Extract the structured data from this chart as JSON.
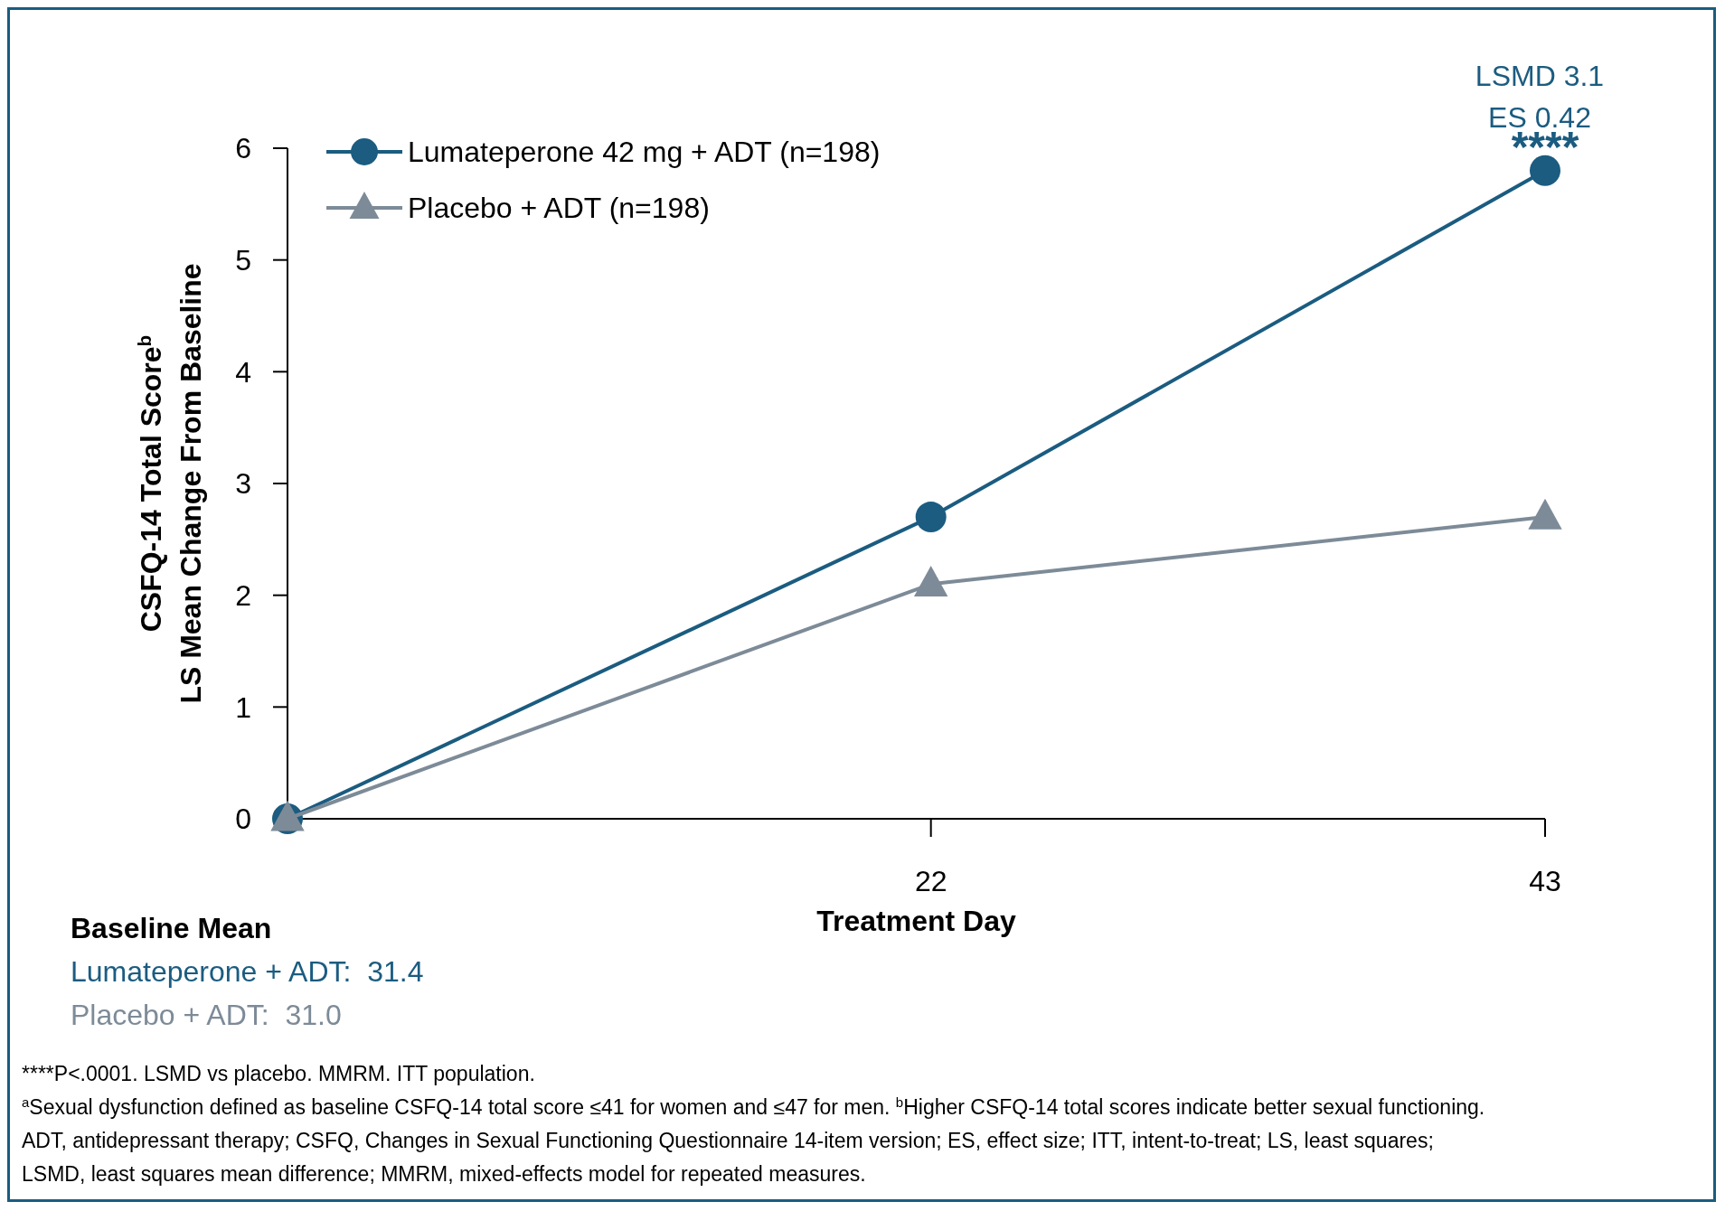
{
  "chart_data": {
    "type": "line",
    "xlabel": "Treatment Day",
    "ylabel": "CSFQ-14 Total Score$^{b}$\nLS Mean Change From Baseline",
    "x": [
      0,
      22,
      43
    ],
    "xlim": [
      0,
      43
    ],
    "xticks": [
      22,
      43
    ],
    "ylim": [
      0,
      6
    ],
    "yticks": [
      0,
      1,
      2,
      3,
      4,
      5,
      6
    ],
    "series": [
      {
        "name": "Lumateperone 42 mg + ADT (n=198)",
        "color": "#1b5c80",
        "marker": "circle",
        "values": [
          0,
          2.7,
          5.8
        ]
      },
      {
        "name": "Placebo + ADT (n=198)",
        "color": "#7d8b98",
        "marker": "triangle",
        "values": [
          0,
          2.1,
          2.7
        ]
      }
    ],
    "legend": "top left",
    "grid": false,
    "annotations": [
      {
        "text": "****",
        "x": 43,
        "y": 5.8
      },
      "LSMD 3.1",
      "ES 0.42",
      "Baseline Mean",
      "Lumateperone + ADT:  31.4",
      "Placebo + ADT:  31.0",
      "****P<.0001. LSMD vs placebo. MMRM. ITT population.",
      "$^{a}$Sexual dysfunction defined as baseline CSFQ-14 total score ≤41 for women and ≤47 for men. $^{b}$Higher CSFQ-14 total scores indicate better sexual functioning.",
      "ADT, antidepressant therapy; CSFQ, Changes in Sexual Functioning Questionnaire 14-item version; ES, effect size; ITT, intent-to-treat; LS, least squares;",
      "LSMD, least squares mean difference; MMRM, mixed-effects model for repeated measures."
    ]
  }
}
